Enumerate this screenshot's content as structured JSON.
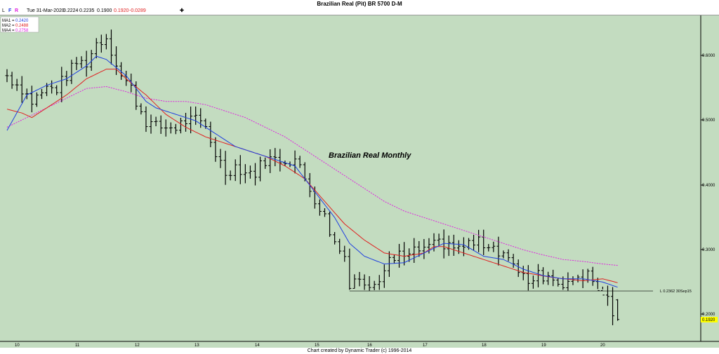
{
  "header": {
    "title": "Brazilian Real (Pit) BR 5700 D-M",
    "flags": [
      "L",
      "F",
      "R"
    ],
    "date": "Tue 31-Mar-2020",
    "open": "0.2224",
    "high": "0.2235",
    "low": "0.1900",
    "close": "0.1920",
    "change": "-0.0289"
  },
  "legend": [
    {
      "label": "MA1 =",
      "value": "0.2420",
      "color": "#1f3fe0"
    },
    {
      "label": "MA2 =",
      "value": "0.2488",
      "color": "#e02020"
    },
    {
      "label": "MA4 =",
      "value": "0.2758",
      "color": "#e020e0"
    }
  ],
  "footer": {
    "credit": "Chart created by Dynamic Trader (c) 1996-2014"
  },
  "chart_data": {
    "type": "line",
    "annotation_text": "Brazilian Real Monthly",
    "x_tick_labels": [
      "10",
      "11",
      "12",
      "13",
      "14",
      "15",
      "16",
      "17",
      "18",
      "19",
      "20"
    ],
    "y_tick_labels": [
      "0.6000",
      "0.5000",
      "0.4000",
      "0.3000",
      "0.2000"
    ],
    "ylim": [
      0.17,
      0.66
    ],
    "last_price_label": "0.1920",
    "last_price_color": "#ffff00",
    "support_line": {
      "label": "L 0.2362 30Sep15",
      "value": 0.2362,
      "start_month": 69
    },
    "colors": {
      "background": "#c3dcc0",
      "bars": "#000000",
      "ma1": "#1f3fe0",
      "ma2": "#e02020",
      "ma4": "#e020e0"
    },
    "months": 123,
    "bars_keyframes": [
      [
        0,
        0.57
      ],
      [
        3,
        0.55
      ],
      [
        5,
        0.53
      ],
      [
        8,
        0.55
      ],
      [
        10,
        0.55
      ],
      [
        12,
        0.57
      ],
      [
        14,
        0.59
      ],
      [
        16,
        0.59
      ],
      [
        18,
        0.62
      ],
      [
        20,
        0.63
      ],
      [
        22,
        0.59
      ],
      [
        23,
        0.57
      ],
      [
        25,
        0.55
      ],
      [
        26,
        0.53
      ],
      [
        28,
        0.5
      ],
      [
        30,
        0.49
      ],
      [
        32,
        0.49
      ],
      [
        34,
        0.49
      ],
      [
        36,
        0.5
      ],
      [
        38,
        0.5
      ],
      [
        40,
        0.49
      ],
      [
        42,
        0.45
      ],
      [
        44,
        0.42
      ],
      [
        46,
        0.43
      ],
      [
        48,
        0.42
      ],
      [
        50,
        0.42
      ],
      [
        52,
        0.44
      ],
      [
        54,
        0.44
      ],
      [
        56,
        0.44
      ],
      [
        58,
        0.44
      ],
      [
        60,
        0.41
      ],
      [
        62,
        0.38
      ],
      [
        64,
        0.35
      ],
      [
        66,
        0.31
      ],
      [
        68,
        0.29
      ],
      [
        69,
        0.25
      ],
      [
        71,
        0.25
      ],
      [
        73,
        0.25
      ],
      [
        75,
        0.26
      ],
      [
        77,
        0.28
      ],
      [
        79,
        0.29
      ],
      [
        81,
        0.29
      ],
      [
        83,
        0.3
      ],
      [
        85,
        0.3
      ],
      [
        87,
        0.31
      ],
      [
        89,
        0.31
      ],
      [
        91,
        0.3
      ],
      [
        93,
        0.31
      ],
      [
        95,
        0.31
      ],
      [
        97,
        0.31
      ],
      [
        99,
        0.3
      ],
      [
        101,
        0.29
      ],
      [
        103,
        0.26
      ],
      [
        105,
        0.25
      ],
      [
        107,
        0.26
      ],
      [
        109,
        0.26
      ],
      [
        111,
        0.25
      ],
      [
        113,
        0.25
      ],
      [
        115,
        0.26
      ],
      [
        117,
        0.26
      ],
      [
        119,
        0.24
      ],
      [
        121,
        0.22
      ],
      [
        122,
        0.2
      ]
    ],
    "ma1": [
      [
        0,
        0.485
      ],
      [
        4,
        0.54
      ],
      [
        8,
        0.555
      ],
      [
        12,
        0.565
      ],
      [
        16,
        0.585
      ],
      [
        18,
        0.6
      ],
      [
        20,
        0.595
      ],
      [
        24,
        0.57
      ],
      [
        28,
        0.53
      ],
      [
        30,
        0.52
      ],
      [
        34,
        0.51
      ],
      [
        38,
        0.5
      ],
      [
        42,
        0.48
      ],
      [
        46,
        0.46
      ],
      [
        50,
        0.45
      ],
      [
        54,
        0.44
      ],
      [
        58,
        0.43
      ],
      [
        62,
        0.39
      ],
      [
        66,
        0.35
      ],
      [
        69,
        0.31
      ],
      [
        72,
        0.29
      ],
      [
        76,
        0.278
      ],
      [
        80,
        0.28
      ],
      [
        84,
        0.295
      ],
      [
        88,
        0.31
      ],
      [
        92,
        0.308
      ],
      [
        96,
        0.29
      ],
      [
        100,
        0.285
      ],
      [
        104,
        0.27
      ],
      [
        108,
        0.26
      ],
      [
        112,
        0.255
      ],
      [
        116,
        0.255
      ],
      [
        120,
        0.25
      ],
      [
        123,
        0.242
      ]
    ],
    "ma2": [
      [
        0,
        0.518
      ],
      [
        3,
        0.512
      ],
      [
        5,
        0.505
      ],
      [
        8,
        0.52
      ],
      [
        12,
        0.54
      ],
      [
        16,
        0.565
      ],
      [
        20,
        0.58
      ],
      [
        22,
        0.58
      ],
      [
        24,
        0.565
      ],
      [
        28,
        0.54
      ],
      [
        32,
        0.51
      ],
      [
        36,
        0.49
      ],
      [
        40,
        0.475
      ],
      [
        44,
        0.465
      ],
      [
        48,
        0.455
      ],
      [
        52,
        0.445
      ],
      [
        56,
        0.43
      ],
      [
        60,
        0.41
      ],
      [
        64,
        0.375
      ],
      [
        68,
        0.34
      ],
      [
        72,
        0.315
      ],
      [
        76,
        0.295
      ],
      [
        80,
        0.29
      ],
      [
        84,
        0.295
      ],
      [
        86,
        0.305
      ],
      [
        88,
        0.305
      ],
      [
        92,
        0.295
      ],
      [
        96,
        0.285
      ],
      [
        100,
        0.275
      ],
      [
        104,
        0.265
      ],
      [
        110,
        0.257
      ],
      [
        116,
        0.252
      ],
      [
        120,
        0.255
      ],
      [
        123,
        0.249
      ]
    ],
    "ma4": [
      [
        0,
        0.49
      ],
      [
        4,
        0.505
      ],
      [
        8,
        0.52
      ],
      [
        12,
        0.535
      ],
      [
        16,
        0.55
      ],
      [
        20,
        0.553
      ],
      [
        24,
        0.545
      ],
      [
        28,
        0.535
      ],
      [
        32,
        0.53
      ],
      [
        36,
        0.53
      ],
      [
        40,
        0.525
      ],
      [
        44,
        0.515
      ],
      [
        48,
        0.505
      ],
      [
        52,
        0.49
      ],
      [
        56,
        0.475
      ],
      [
        60,
        0.455
      ],
      [
        64,
        0.435
      ],
      [
        68,
        0.415
      ],
      [
        72,
        0.395
      ],
      [
        76,
        0.375
      ],
      [
        80,
        0.36
      ],
      [
        84,
        0.35
      ],
      [
        88,
        0.34
      ],
      [
        92,
        0.33
      ],
      [
        96,
        0.32
      ],
      [
        100,
        0.31
      ],
      [
        104,
        0.3
      ],
      [
        108,
        0.292
      ],
      [
        112,
        0.285
      ],
      [
        116,
        0.282
      ],
      [
        120,
        0.278
      ],
      [
        123,
        0.2758
      ]
    ]
  }
}
